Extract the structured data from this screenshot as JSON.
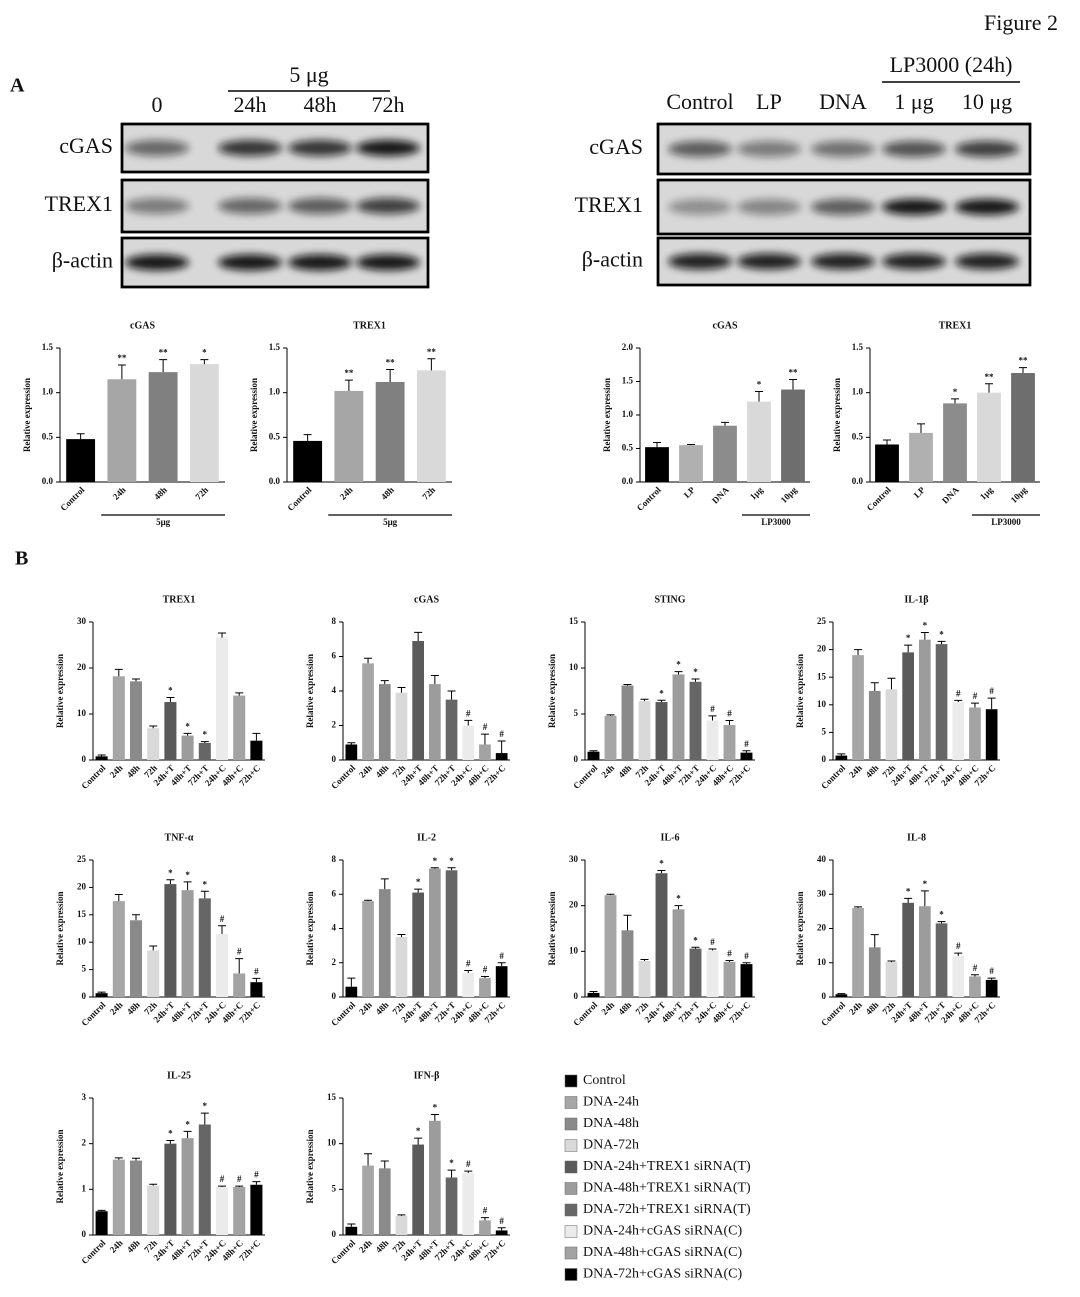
{
  "header": {
    "figure": "Figure 2"
  },
  "panels": {
    "a": "A",
    "b": "B"
  },
  "blots": [
    {
      "group_label": "5 μg",
      "lanes": [
        "0",
        "24h",
        "48h",
        "72h"
      ],
      "rows": [
        "cGAS",
        "TREX1",
        "β-actin"
      ]
    },
    {
      "group_label": "LP3000 (24h)",
      "lanes": [
        "Control",
        "LP",
        "DNA",
        "1 μg",
        "10 μg"
      ],
      "rows": [
        "cGAS",
        "TREX1",
        "β-actin"
      ]
    }
  ],
  "legend": {
    "items": [
      {
        "name": "Control",
        "color": "#000000"
      },
      {
        "name": "DNA-24h",
        "color": "#a6a6a6"
      },
      {
        "name": "DNA-48h",
        "color": "#8a8a8a"
      },
      {
        "name": "DNA-72h",
        "color": "#d9d9d9"
      },
      {
        "name": "DNA-24h+TREX1 siRNA(T)",
        "color": "#5a5a5a"
      },
      {
        "name": "DNA-48h+TREX1 siRNA(T)",
        "color": "#9c9c9c"
      },
      {
        "name": "DNA-72h+TREX1 siRNA(T)",
        "color": "#666666"
      },
      {
        "name": "DNA-24h+cGAS siRNA(C)",
        "color": "#ebebeb"
      },
      {
        "name": "DNA-48h+cGAS siRNA(C)",
        "color": "#a3a3a3"
      },
      {
        "name": "DNA-72h+cGAS siRNA(C)",
        "color": "#000000"
      }
    ]
  },
  "chart_data": [
    {
      "type": "bar",
      "title": "cGAS",
      "y_label": "Relative expression",
      "categories": [
        "Control",
        "24h",
        "48h",
        "72h"
      ],
      "group_label": "5μg",
      "values": [
        0.48,
        1.15,
        1.23,
        1.32
      ],
      "errors": [
        0.06,
        0.16,
        0.14,
        0.05
      ],
      "significance": [
        null,
        "**",
        "**",
        "*"
      ],
      "colors": [
        "#000000",
        "#a6a6a6",
        "#808080",
        "#d9d9d9"
      ],
      "ylim": [
        0,
        1.5
      ],
      "yticks": [
        {
          "value": 0,
          "label": "0.0"
        },
        {
          "value": 0.5,
          "label": "0.5"
        },
        {
          "value": 1,
          "label": "1.0"
        },
        {
          "value": 1.5,
          "label": "1.5"
        }
      ]
    },
    {
      "type": "bar",
      "title": "TREX1",
      "y_label": "Relative expression",
      "categories": [
        "Control",
        "24h",
        "48h",
        "72h"
      ],
      "group_label": "5μg",
      "values": [
        0.46,
        1.02,
        1.12,
        1.25
      ],
      "errors": [
        0.07,
        0.12,
        0.14,
        0.13
      ],
      "significance": [
        null,
        "**",
        "**",
        "**"
      ],
      "colors": [
        "#000000",
        "#a6a6a6",
        "#808080",
        "#d9d9d9"
      ],
      "ylim": [
        0,
        1.5
      ],
      "yticks": [
        {
          "value": 0,
          "label": "0.0"
        },
        {
          "value": 0.5,
          "label": "0.5"
        },
        {
          "value": 1,
          "label": "1.0"
        },
        {
          "value": 1.5,
          "label": "1.5"
        }
      ]
    },
    {
      "type": "bar",
      "title": "cGAS",
      "y_label": "Relative expression",
      "categories": [
        "Control",
        "LP",
        "DNA",
        "1μg",
        "10μg"
      ],
      "group_label": "LP3000",
      "values": [
        0.52,
        0.55,
        0.84,
        1.2,
        1.38
      ],
      "errors": [
        0.07,
        0.01,
        0.05,
        0.15,
        0.15
      ],
      "significance": [
        null,
        null,
        null,
        "*",
        "**"
      ],
      "colors": [
        "#000000",
        "#b0b0b0",
        "#8c8c8c",
        "#d9d9d9",
        "#6e6e6e"
      ],
      "ylim": [
        0,
        2
      ],
      "yticks": [
        {
          "value": 0,
          "label": "0.0"
        },
        {
          "value": 0.5,
          "label": "0.5"
        },
        {
          "value": 1,
          "label": "1.0"
        },
        {
          "value": 1.5,
          "label": "1.5"
        },
        {
          "value": 2,
          "label": "2.0"
        }
      ]
    },
    {
      "type": "bar",
      "title": "TREX1",
      "y_label": "Relative expression",
      "categories": [
        "Control",
        "LP",
        "DNA",
        "1μg",
        "10μg"
      ],
      "group_label": "LP3000",
      "values": [
        0.42,
        0.55,
        0.88,
        1.0,
        1.22
      ],
      "errors": [
        0.05,
        0.1,
        0.05,
        0.1,
        0.06
      ],
      "significance": [
        null,
        null,
        "*",
        "**",
        "**"
      ],
      "colors": [
        "#000000",
        "#b0b0b0",
        "#8c8c8c",
        "#d9d9d9",
        "#6e6e6e"
      ],
      "ylim": [
        0,
        1.5
      ],
      "yticks": [
        {
          "value": 0,
          "label": "0.0"
        },
        {
          "value": 0.5,
          "label": "0.5"
        },
        {
          "value": 1,
          "label": "1.0"
        },
        {
          "value": 1.5,
          "label": "1.5"
        }
      ]
    },
    {
      "type": "bar",
      "title": "TREX1",
      "y_label": "Relative expression",
      "categories": [
        "Control",
        "24h",
        "48h",
        "72h",
        "24h+T",
        "48h+T",
        "72h+T",
        "24h+C",
        "48h+C",
        "72h+C"
      ],
      "values": [
        0.8,
        18.2,
        17.1,
        6.9,
        12.6,
        5.3,
        3.7,
        26.6,
        14,
        4.2
      ],
      "errors": [
        0.3,
        1.5,
        0.5,
        0.5,
        1,
        0.5,
        0.3,
        1,
        0.6,
        1.6
      ],
      "significance": [
        null,
        null,
        null,
        null,
        "*",
        "*",
        "*",
        null,
        null,
        null
      ],
      "ylim": [
        0,
        30
      ],
      "yticks": [
        0,
        10,
        20,
        30
      ]
    },
    {
      "type": "bar",
      "title": "cGAS",
      "y_label": "Relative expression",
      "categories": [
        "Control",
        "24h",
        "48h",
        "72h",
        "24h+T",
        "48h+T",
        "72h+T",
        "24h+C",
        "48h+C",
        "72h+C"
      ],
      "values": [
        0.9,
        5.6,
        4.4,
        3.9,
        6.9,
        4.4,
        3.5,
        2.0,
        0.9,
        0.4
      ],
      "errors": [
        0.1,
        0.3,
        0.2,
        0.3,
        0.5,
        0.5,
        0.5,
        0.3,
        0.6,
        0.7
      ],
      "significance": [
        null,
        null,
        null,
        null,
        null,
        null,
        null,
        "#",
        "#",
        "#"
      ],
      "ylim": [
        0,
        8
      ],
      "yticks": [
        0,
        2,
        4,
        6,
        8
      ]
    },
    {
      "type": "bar",
      "title": "STING",
      "y_label": "Relative expression",
      "categories": [
        "Control",
        "24h",
        "48h",
        "72h",
        "24h+T",
        "48h+T",
        "72h+T",
        "24h+C",
        "48h+C",
        "72h+C"
      ],
      "values": [
        0.9,
        4.8,
        8.1,
        6.4,
        6.3,
        9.3,
        8.5,
        4.3,
        3.8,
        0.8
      ],
      "errors": [
        0.1,
        0.1,
        0.1,
        0.2,
        0.2,
        0.3,
        0.3,
        0.5,
        0.5,
        0.2
      ],
      "significance": [
        null,
        null,
        null,
        null,
        "*",
        "*",
        "*",
        "#",
        "#",
        "#"
      ],
      "ylim": [
        0,
        15
      ],
      "yticks": [
        0,
        5,
        10,
        15
      ]
    },
    {
      "type": "bar",
      "title": "IL-1β",
      "y_label": "Relative expression",
      "categories": [
        "Control",
        "24h",
        "48h",
        "72h",
        "24h+T",
        "48h+T",
        "72h+T",
        "24h+C",
        "48h+C",
        "72h+C"
      ],
      "values": [
        0.8,
        19,
        12.5,
        12.8,
        19.5,
        21.8,
        21,
        10.5,
        9.5,
        9.2
      ],
      "errors": [
        0.3,
        1,
        1.5,
        2,
        1.3,
        1.3,
        0.5,
        0.3,
        0.8,
        2
      ],
      "significance": [
        null,
        null,
        null,
        null,
        "*",
        "*",
        "*",
        "#",
        "#",
        "#"
      ],
      "ylim": [
        0,
        25
      ],
      "yticks": [
        0,
        5,
        10,
        15,
        20,
        25
      ]
    },
    {
      "type": "bar",
      "title": "TNF-α",
      "y_label": "Relative expression",
      "categories": [
        "Control",
        "24h",
        "48h",
        "72h",
        "24h+T",
        "48h+T",
        "72h+T",
        "24h+C",
        "48h+C",
        "72h+C"
      ],
      "values": [
        0.7,
        17.5,
        14,
        8.5,
        20.6,
        19.5,
        18,
        11.5,
        4.3,
        2.7
      ],
      "errors": [
        0.2,
        1.2,
        1,
        0.8,
        0.8,
        1.5,
        1.3,
        1.5,
        2.7,
        0.7
      ],
      "significance": [
        null,
        null,
        null,
        null,
        "*",
        "*",
        "*",
        "#",
        "#",
        "#"
      ],
      "ylim": [
        0,
        25
      ],
      "yticks": [
        0,
        5,
        10,
        15,
        20,
        25
      ]
    },
    {
      "type": "bar",
      "title": "IL-2",
      "y_label": "Relative expression",
      "categories": [
        "Control",
        "24h",
        "48h",
        "72h",
        "24h+T",
        "48h+T",
        "72h+T",
        "24h+C",
        "48h+C",
        "72h+C"
      ],
      "values": [
        0.6,
        5.6,
        6.3,
        3.5,
        6.1,
        7.5,
        7.4,
        1.4,
        1.1,
        1.8
      ],
      "errors": [
        0.5,
        0.05,
        0.6,
        0.15,
        0.2,
        0.05,
        0.15,
        0.15,
        0.1,
        0.2
      ],
      "significance": [
        null,
        null,
        null,
        null,
        "*",
        "*",
        "*",
        "#",
        "#",
        "#"
      ],
      "ylim": [
        0,
        8
      ],
      "yticks": [
        0,
        2,
        4,
        6,
        8
      ]
    },
    {
      "type": "bar",
      "title": "IL-6",
      "y_label": "Relative expression",
      "categories": [
        "Control",
        "24h",
        "48h",
        "72h",
        "24h+T",
        "48h+T",
        "72h+T",
        "24h+C",
        "48h+C",
        "72h+C"
      ],
      "values": [
        0.9,
        22.3,
        14.6,
        7.9,
        27.1,
        19.2,
        10.6,
        10.2,
        7.7,
        7.2
      ],
      "errors": [
        0.3,
        0.2,
        3.3,
        0.3,
        0.6,
        0.8,
        0.3,
        0.3,
        0.3,
        0.3
      ],
      "significance": [
        null,
        null,
        null,
        null,
        "*",
        "*",
        "*",
        "#",
        "#",
        "#"
      ],
      "ylim": [
        0,
        30
      ],
      "yticks": [
        0,
        10,
        20,
        30
      ]
    },
    {
      "type": "bar",
      "title": "IL-8",
      "y_label": "Relative expression",
      "categories": [
        "Control",
        "24h",
        "48h",
        "72h",
        "24h+T",
        "48h+T",
        "72h+T",
        "24h+C",
        "48h+C",
        "72h+C"
      ],
      "values": [
        0.8,
        26,
        14.5,
        10.2,
        27.5,
        26.5,
        21.5,
        12,
        6,
        5
      ],
      "errors": [
        0.2,
        0.3,
        3.7,
        0.3,
        1.3,
        4.5,
        0.5,
        0.8,
        0.5,
        0.5
      ],
      "significance": [
        null,
        null,
        null,
        null,
        "*",
        "*",
        "*",
        "#",
        "#",
        "#"
      ],
      "ylim": [
        0,
        40
      ],
      "yticks": [
        0,
        10,
        20,
        30,
        40
      ]
    },
    {
      "type": "bar",
      "title": "IL-25",
      "y_label": "Relative expression",
      "categories": [
        "Control",
        "24h",
        "48h",
        "72h",
        "24h+T",
        "48h+T",
        "72h+T",
        "24h+C",
        "48h+C",
        "72h+C"
      ],
      "values": [
        0.52,
        1.65,
        1.63,
        1.08,
        2.0,
        2.12,
        2.42,
        1.05,
        1.05,
        1.1
      ],
      "errors": [
        0.02,
        0.04,
        0.05,
        0.03,
        0.07,
        0.15,
        0.25,
        0.02,
        0.02,
        0.07
      ],
      "significance": [
        null,
        null,
        null,
        null,
        "*",
        "*",
        "*",
        "#",
        "#",
        "#"
      ],
      "ylim": [
        0,
        3
      ],
      "yticks": [
        0,
        1,
        2,
        3
      ]
    },
    {
      "type": "bar",
      "title": "IFN-β",
      "y_label": "Relative expression",
      "categories": [
        "Control",
        "24h",
        "48h",
        "72h",
        "24h+T",
        "48h+T",
        "72h+T",
        "24h+C",
        "48h+C",
        "72h+C"
      ],
      "values": [
        0.9,
        7.6,
        7.3,
        2.1,
        9.9,
        12.5,
        6.3,
        6.8,
        1.6,
        0.5
      ],
      "errors": [
        0.3,
        1.3,
        0.8,
        0.1,
        0.7,
        0.7,
        0.8,
        0.2,
        0.3,
        0.3
      ],
      "significance": [
        null,
        null,
        null,
        null,
        "*",
        "*",
        "*",
        "#",
        "#",
        "#"
      ],
      "ylim": [
        0,
        15
      ],
      "yticks": [
        0,
        5,
        10,
        15
      ]
    }
  ]
}
